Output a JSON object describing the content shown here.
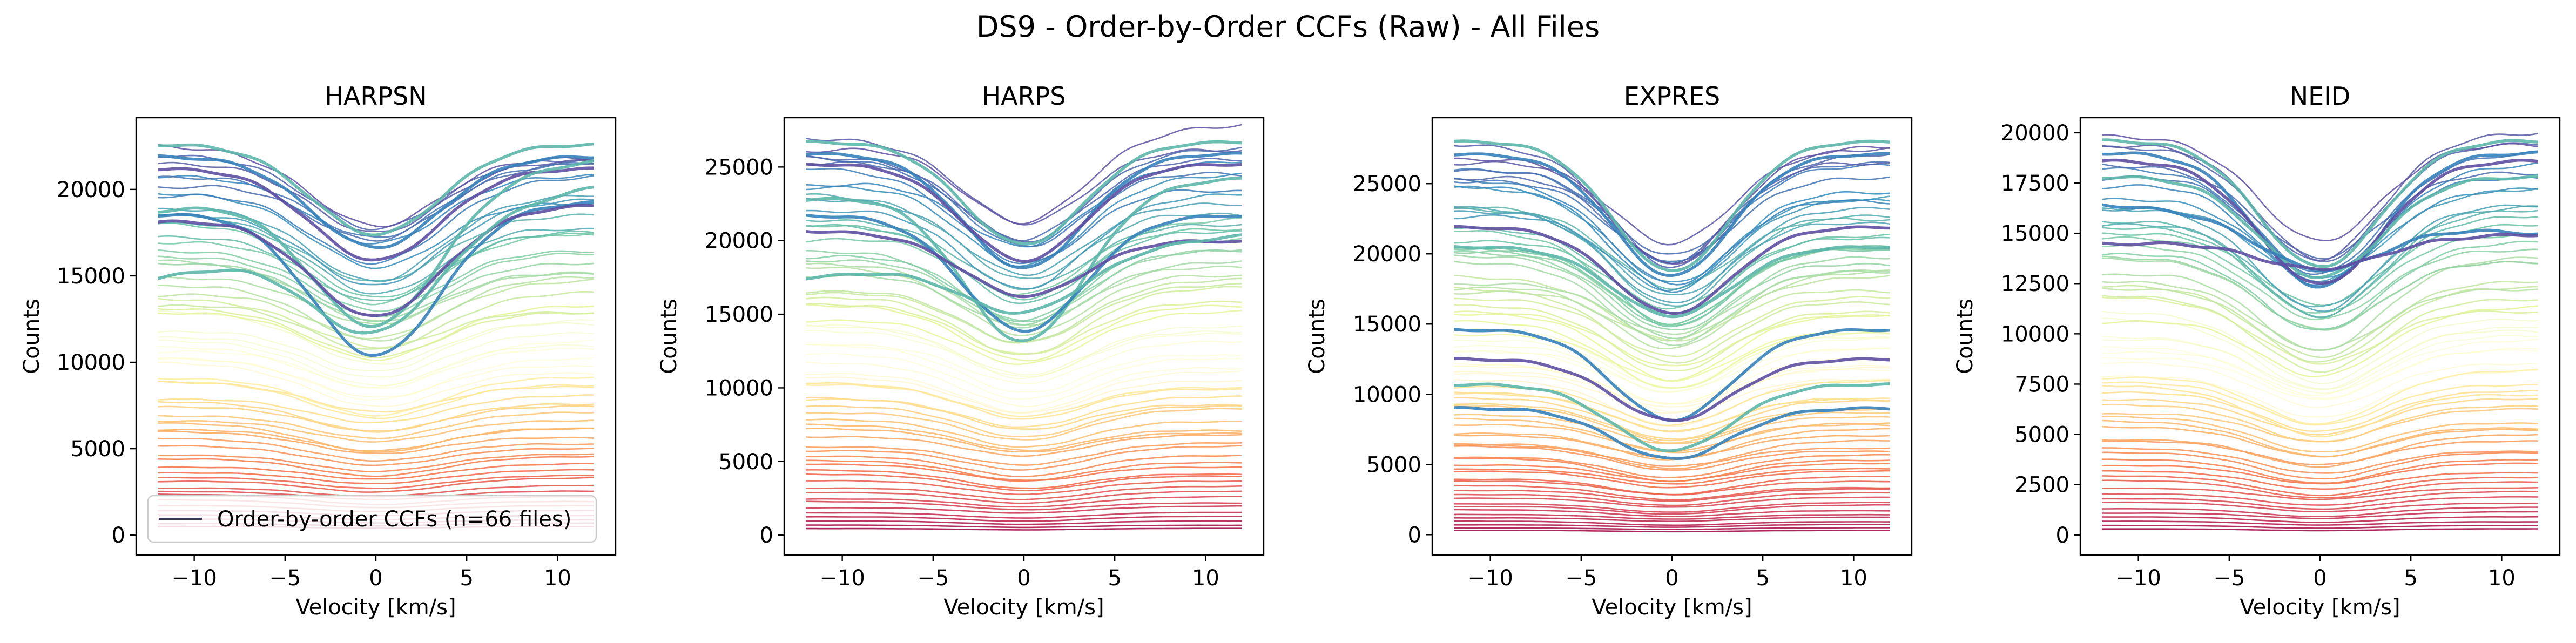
{
  "figure": {
    "suptitle": "DS9 - Order-by-Order CCFs (Raw) - All Files",
    "colormap": [
      "#9e0142",
      "#d53e4f",
      "#f46d43",
      "#fdae61",
      "#fee08b",
      "#ffffbf",
      "#e6f598",
      "#abdda4",
      "#66c2a5",
      "#3288bd",
      "#5e4fa2"
    ]
  },
  "chart_data": [
    {
      "type": "line",
      "title": "HARPSN",
      "xlabel": "Velocity [km/s]",
      "ylabel": "Counts",
      "xlim": [
        -13.2,
        13.2
      ],
      "ylim": [
        -1150,
        24150
      ],
      "xticks": [
        -10,
        -5,
        0,
        5,
        10
      ],
      "xticklabels": [
        "−10",
        "−5",
        "0",
        "5",
        "10"
      ],
      "yticks": [
        0,
        5000,
        10000,
        15000,
        20000
      ],
      "yticklabels": [
        "0",
        "5000",
        "10000",
        "15000",
        "20000"
      ],
      "legend": {
        "placement": "lower-left",
        "label": "Order-by-order CCFs (n=66 files)"
      },
      "grid": false,
      "n_orders": 64,
      "velocity_range": [
        -12,
        12
      ],
      "line_sigma_kms": 3.5,
      "continuum_range": [
        500,
        22600
      ],
      "depth_frac_range": [
        0.18,
        0.24
      ],
      "pale_orders": [
        0.46,
        0.6
      ],
      "bold_orders": [
        {
          "continuum": 22600,
          "depth_frac": 0.23,
          "slope": 0
        },
        {
          "continuum": 21900,
          "depth_frac": 0.24,
          "slope": 0
        },
        {
          "continuum": 21200,
          "depth_frac": 0.25,
          "slope": 0
        },
        {
          "continuum": 20200,
          "depth_frac": 0.4,
          "slope": 120
        },
        {
          "continuum": 18900,
          "depth_frac": 0.45,
          "slope": 30
        },
        {
          "continuum": 18600,
          "depth_frac": 0.32,
          "slope": 40
        },
        {
          "continuum": 17500,
          "depth_frac": 0.33,
          "slope": 220
        }
      ]
    },
    {
      "type": "line",
      "title": "HARPS",
      "xlabel": "Velocity [km/s]",
      "ylabel": "Counts",
      "xlim": [
        -13.2,
        13.2
      ],
      "ylim": [
        -1350,
        28350
      ],
      "xticks": [
        -10,
        -5,
        0,
        5,
        10
      ],
      "xticklabels": [
        "−10",
        "−5",
        "0",
        "5",
        "10"
      ],
      "yticks": [
        0,
        5000,
        10000,
        15000,
        20000,
        25000
      ],
      "yticklabels": [
        "0",
        "5000",
        "10000",
        "15000",
        "20000",
        "25000"
      ],
      "grid": false,
      "n_orders": 64,
      "velocity_range": [
        -12,
        12
      ],
      "line_sigma_kms": 3.3,
      "continuum_range": [
        450,
        26800
      ],
      "depth_frac_range": [
        0.2,
        0.26
      ],
      "pale_orders": [
        0.44,
        0.58
      ],
      "bold_orders": [
        {
          "continuum": 26700,
          "depth_frac": 0.26,
          "slope": 0
        },
        {
          "continuum": 25900,
          "depth_frac": 0.3,
          "slope": 0
        },
        {
          "continuum": 25200,
          "depth_frac": 0.26,
          "slope": 0
        },
        {
          "continuum": 23500,
          "depth_frac": 0.44,
          "slope": 60
        },
        {
          "continuum": 21700,
          "depth_frac": 0.36,
          "slope": 0
        },
        {
          "continuum": 20300,
          "depth_frac": 0.2,
          "slope": -30
        },
        {
          "continuum": 18900,
          "depth_frac": 0.2,
          "slope": 120
        }
      ]
    },
    {
      "type": "line",
      "title": "EXPRES",
      "xlabel": "Velocity [km/s]",
      "ylabel": "Counts",
      "xlim": [
        -13.2,
        13.2
      ],
      "ylim": [
        -1450,
        29700
      ],
      "xticks": [
        -10,
        -5,
        0,
        5,
        10
      ],
      "xticklabels": [
        "−10",
        "−5",
        "0",
        "5",
        "10"
      ],
      "yticks": [
        0,
        5000,
        10000,
        15000,
        20000,
        25000
      ],
      "yticklabels": [
        "0",
        "5000",
        "10000",
        "15000",
        "20000",
        "25000"
      ],
      "grid": false,
      "n_orders": 80,
      "velocity_range": [
        -12,
        12
      ],
      "line_sigma_kms": 3.2,
      "continuum_range": [
        300,
        28000
      ],
      "depth_frac_range": [
        0.22,
        0.3
      ],
      "pale_orders": [
        0.42,
        0.56
      ],
      "bold_orders": [
        {
          "continuum": 28000,
          "depth_frac": 0.33,
          "slope": 0
        },
        {
          "continuum": 27100,
          "depth_frac": 0.32,
          "slope": 0
        },
        {
          "continuum": 21900,
          "depth_frac": 0.28,
          "slope": 0
        },
        {
          "continuum": 20500,
          "depth_frac": 0.24,
          "slope": 0
        },
        {
          "continuum": 14600,
          "depth_frac": 0.44,
          "slope": 0
        },
        {
          "continuum": 12500,
          "depth_frac": 0.35,
          "slope": 0
        },
        {
          "continuum": 10700,
          "depth_frac": 0.44,
          "slope": 0
        },
        {
          "continuum": 9000,
          "depth_frac": 0.4,
          "slope": 0
        }
      ]
    },
    {
      "type": "line",
      "title": "NEID",
      "xlabel": "Velocity [km/s]",
      "ylabel": "Counts",
      "xlim": [
        -13.2,
        13.2
      ],
      "ylim": [
        -1000,
        20750
      ],
      "xticks": [
        -10,
        -5,
        0,
        5,
        10
      ],
      "xticklabels": [
        "−10",
        "−5",
        "0",
        "5",
        "10"
      ],
      "yticks": [
        0,
        2500,
        5000,
        7500,
        10000,
        12500,
        15000,
        17500,
        20000
      ],
      "yticklabels": [
        "0",
        "2500",
        "5000",
        "7500",
        "10000",
        "12500",
        "15000",
        "17500",
        "20000"
      ],
      "grid": false,
      "n_orders": 64,
      "velocity_range": [
        -12,
        12
      ],
      "line_sigma_kms": 3.3,
      "continuum_range": [
        300,
        19600
      ],
      "depth_frac_range": [
        0.24,
        0.32
      ],
      "pale_orders": [
        0.46,
        0.6
      ],
      "bold_orders": [
        {
          "continuum": 19600,
          "depth_frac": 0.32,
          "slope": 0
        },
        {
          "continuum": 19000,
          "depth_frac": 0.35,
          "slope": 0
        },
        {
          "continuum": 18600,
          "depth_frac": 0.33,
          "slope": 0
        },
        {
          "continuum": 17800,
          "depth_frac": 0.28,
          "slope": 0
        },
        {
          "continuum": 15700,
          "depth_frac": 0.16,
          "slope": -60
        },
        {
          "continuum": 14700,
          "depth_frac": 0.1,
          "slope": 20
        }
      ]
    }
  ]
}
